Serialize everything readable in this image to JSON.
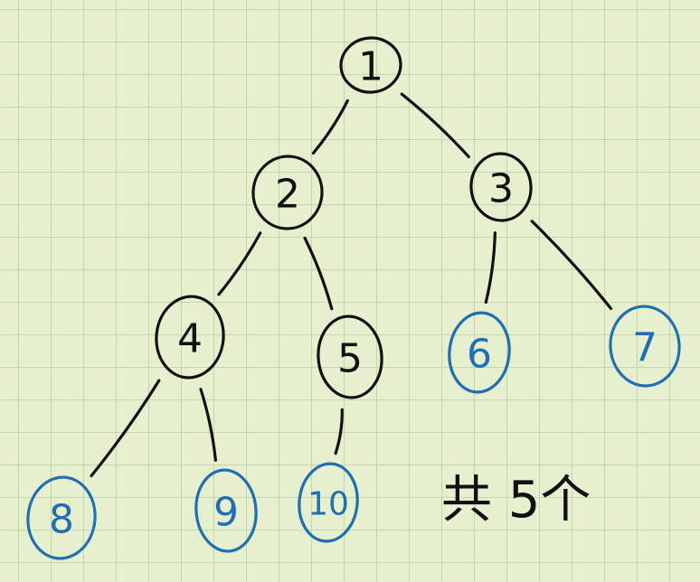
{
  "colors": {
    "background": "#e6f0cf",
    "grid": "#c5d6ab",
    "internal_node": "#111111",
    "leaf_node": "#1f6fb4"
  },
  "tree": {
    "nodes": [
      {
        "id": "n1",
        "label": "1",
        "kind": "internal"
      },
      {
        "id": "n2",
        "label": "2",
        "kind": "internal"
      },
      {
        "id": "n3",
        "label": "3",
        "kind": "internal"
      },
      {
        "id": "n4",
        "label": "4",
        "kind": "internal"
      },
      {
        "id": "n5",
        "label": "5",
        "kind": "internal"
      },
      {
        "id": "n6",
        "label": "6",
        "kind": "leaf"
      },
      {
        "id": "n7",
        "label": "7",
        "kind": "leaf"
      },
      {
        "id": "n8",
        "label": "8",
        "kind": "leaf"
      },
      {
        "id": "n9",
        "label": "9",
        "kind": "leaf"
      },
      {
        "id": "n10",
        "label": "10",
        "kind": "leaf"
      }
    ],
    "edges": [
      {
        "from": "n1",
        "to": "n2"
      },
      {
        "from": "n1",
        "to": "n3"
      },
      {
        "from": "n2",
        "to": "n4"
      },
      {
        "from": "n2",
        "to": "n5"
      },
      {
        "from": "n3",
        "to": "n6"
      },
      {
        "from": "n3",
        "to": "n7"
      },
      {
        "from": "n4",
        "to": "n8"
      },
      {
        "from": "n4",
        "to": "n9"
      },
      {
        "from": "n5",
        "to": "n10"
      }
    ]
  },
  "note": {
    "text": "共 5个"
  }
}
